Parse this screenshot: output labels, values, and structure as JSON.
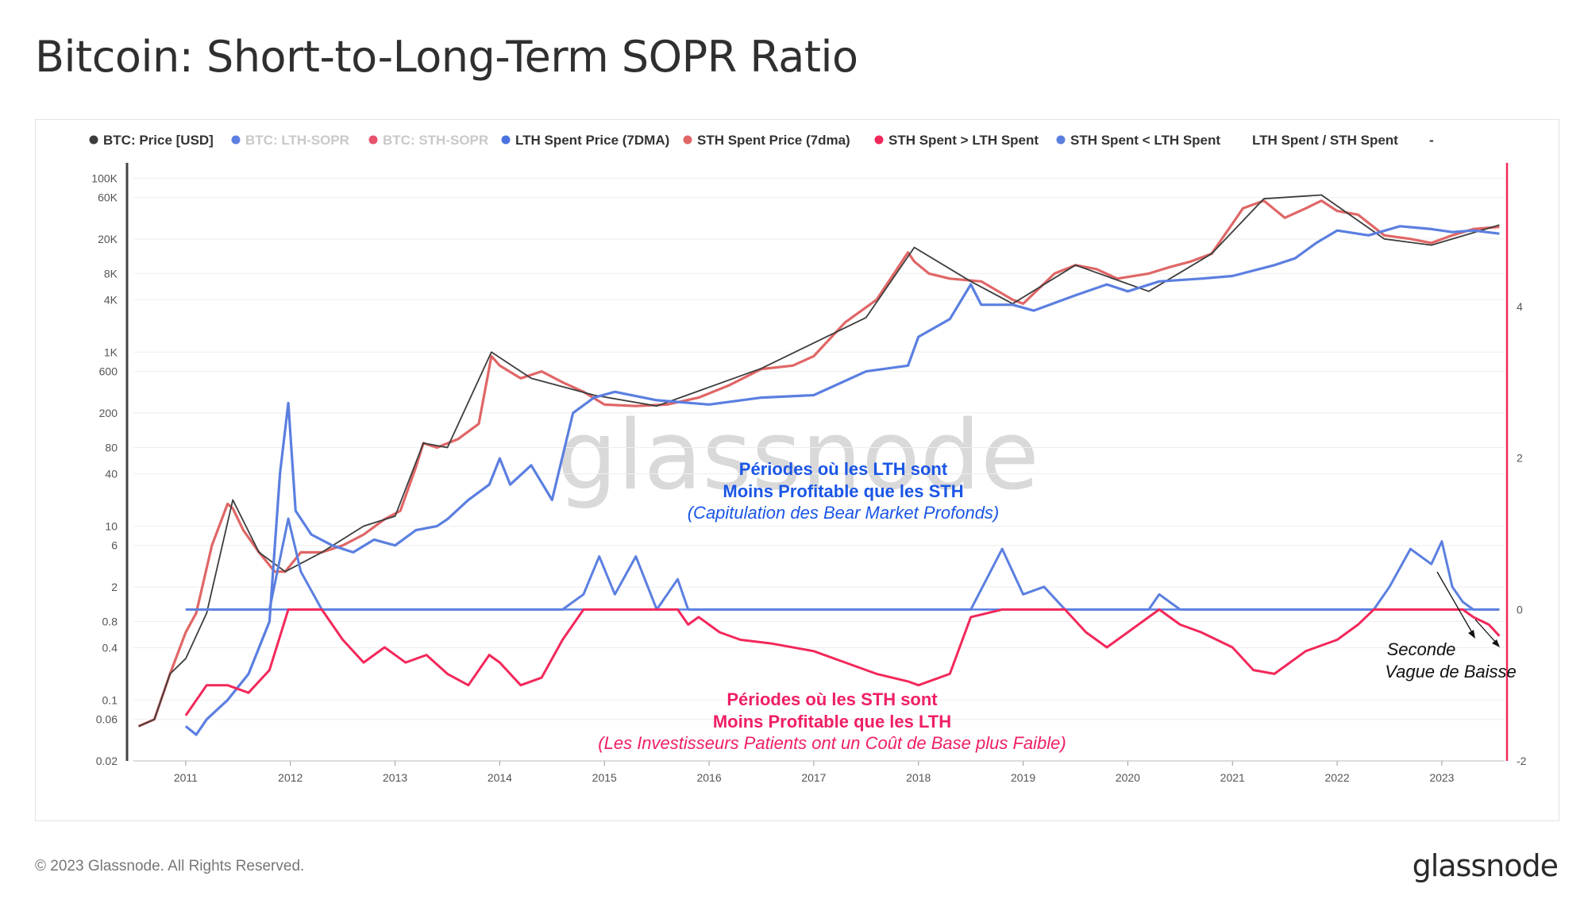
{
  "title": "Bitcoin: Short-to-Long-Term SOPR Ratio",
  "footer": {
    "copyright": "© 2023 Glassnode. All Rights Reserved.",
    "brand": "glassnode"
  },
  "watermark": "glassnode",
  "colors": {
    "price": "#3d3d3d",
    "lth_sopr": "#5b7fe0",
    "sth_sopr": "#e8516b",
    "lth_spent_price": "#5b7fe0",
    "sth_spent_price": "#e06666",
    "sth_gt_lth": "#f2285a",
    "sth_lt_lth": "#5b7fe0",
    "right_axis": "#f2285a"
  },
  "legend": [
    {
      "label": "BTC: Price [USD]",
      "color": "#3d3d3d",
      "muted": false
    },
    {
      "label": "BTC: LTH-SOPR",
      "color": "#5b7fe0",
      "muted": true
    },
    {
      "label": "BTC: STH-SOPR",
      "color": "#e8516b",
      "muted": true
    },
    {
      "label": "LTH Spent Price (7DMA)",
      "color": "#4b73e0",
      "muted": false
    },
    {
      "label": "STH Spent Price (7dma)",
      "color": "#e06666",
      "muted": false
    },
    {
      "label": "STH Spent > LTH Spent",
      "color": "#f2285a",
      "muted": false
    },
    {
      "label": "STH Spent < LTH Spent",
      "color": "#5b7fe0",
      "muted": false
    },
    {
      "label": "LTH Spent / STH Spent",
      "color": "",
      "muted": false
    },
    {
      "label": "-",
      "color": "",
      "muted": false
    }
  ],
  "annotations": {
    "top": [
      "Périodes où les LTH sont",
      "Moins Profitable que les STH",
      "(Capitulation des Bear Market Profonds)"
    ],
    "bottom": [
      "Périodes où les STH sont",
      "Moins Profitable que les LTH",
      "(Les Investisseurs Patients ont un Coût de Base plus Faible)"
    ],
    "note": [
      "Seconde",
      "Vague de Baisse"
    ]
  },
  "chart_data": {
    "type": "line",
    "x_axis": {
      "ticks": [
        "2011",
        "2012",
        "2013",
        "2014",
        "2015",
        "2016",
        "2017",
        "2018",
        "2019",
        "2020",
        "2021",
        "2022",
        "2023"
      ],
      "range": [
        2010.5,
        2023.6
      ]
    },
    "y_left": {
      "scale": "log",
      "ticks": [
        "100K",
        "60K",
        "20K",
        "8K",
        "4K",
        "1K",
        "600",
        "200",
        "80",
        "40",
        "10",
        "6",
        "2",
        "0.8",
        "0.4",
        "0.1",
        "0.06",
        "0.02"
      ],
      "tick_values": [
        100000,
        60000,
        20000,
        8000,
        4000,
        1000,
        600,
        200,
        80,
        40,
        10,
        6,
        2,
        0.8,
        0.4,
        0.1,
        0.06,
        0.02
      ],
      "range": [
        0.02,
        150000
      ]
    },
    "y_right": {
      "scale": "linear",
      "ticks": [
        "4",
        "2",
        "0",
        "-2"
      ],
      "tick_values": [
        4,
        2,
        0,
        -2
      ],
      "range": [
        -2,
        5.9
      ]
    },
    "series": [
      {
        "name": "STH Spent Price (7dma)",
        "axis": "left",
        "x": [
          2010.55,
          2010.7,
          2010.85,
          2011.0,
          2011.1,
          2011.25,
          2011.4,
          2011.45,
          2011.55,
          2011.7,
          2011.85,
          2011.95,
          2012.1,
          2012.3,
          2012.5,
          2012.7,
          2012.9,
          2013.05,
          2013.2,
          2013.27,
          2013.4,
          2013.6,
          2013.8,
          2013.92,
          2014.0,
          2014.2,
          2014.4,
          2014.6,
          2014.8,
          2015.0,
          2015.3,
          2015.6,
          2015.9,
          2016.2,
          2016.5,
          2016.8,
          2017.0,
          2017.3,
          2017.6,
          2017.9,
          2017.96,
          2018.1,
          2018.3,
          2018.6,
          2018.9,
          2019.0,
          2019.3,
          2019.5,
          2019.7,
          2019.9,
          2020.2,
          2020.4,
          2020.6,
          2020.8,
          2021.0,
          2021.1,
          2021.3,
          2021.5,
          2021.7,
          2021.85,
          2022.0,
          2022.2,
          2022.45,
          2022.7,
          2022.9,
          2023.1,
          2023.3,
          2023.55
        ],
        "y": [
          0.05,
          0.06,
          0.2,
          0.6,
          1,
          6,
          18,
          16,
          9,
          5,
          3,
          3,
          5,
          5,
          6,
          8,
          12,
          15,
          48,
          90,
          80,
          100,
          150,
          900,
          700,
          500,
          600,
          450,
          350,
          250,
          240,
          250,
          300,
          420,
          640,
          700,
          900,
          2200,
          4000,
          14000,
          11000,
          8000,
          7000,
          6500,
          4000,
          3600,
          8000,
          10000,
          9000,
          7000,
          8000,
          9500,
          11000,
          13500,
          30000,
          45000,
          55000,
          35000,
          45000,
          55000,
          42000,
          38000,
          22000,
          20000,
          18000,
          22000,
          26000,
          27500
        ]
      },
      {
        "name": "BTC: Price [USD]",
        "axis": "left",
        "x": [
          2010.55,
          2010.7,
          2010.85,
          2011.0,
          2011.2,
          2011.45,
          2011.7,
          2011.95,
          2012.3,
          2012.7,
          2013.0,
          2013.27,
          2013.5,
          2013.92,
          2014.3,
          2014.9,
          2015.5,
          2016.5,
          2017.5,
          2017.96,
          2018.5,
          2018.9,
          2019.5,
          2020.2,
          2020.8,
          2021.3,
          2021.85,
          2022.45,
          2022.9,
          2023.55
        ],
        "y": [
          0.05,
          0.06,
          0.2,
          0.3,
          1,
          20,
          5,
          3,
          5,
          10,
          13,
          90,
          80,
          1000,
          500,
          320,
          240,
          650,
          2500,
          16000,
          6500,
          3600,
          10000,
          5000,
          13500,
          58000,
          64000,
          20000,
          17000,
          29000
        ]
      },
      {
        "name": "LTH Spent Price (7DMA)",
        "axis": "left",
        "x": [
          2011.0,
          2011.1,
          2011.2,
          2011.4,
          2011.6,
          2011.8,
          2011.9,
          2011.98,
          2012.05,
          2012.2,
          2012.4,
          2012.6,
          2012.8,
          2013.0,
          2013.2,
          2013.4,
          2013.5,
          2013.7,
          2013.9,
          2014.0,
          2014.1,
          2014.3,
          2014.5,
          2014.7,
          2014.9,
          2015.1,
          2015.5,
          2016.0,
          2016.5,
          2017.0,
          2017.5,
          2017.9,
          2018.0,
          2018.3,
          2018.5,
          2018.6,
          2018.9,
          2019.1,
          2019.5,
          2019.8,
          2020.0,
          2020.3,
          2020.7,
          2021.0,
          2021.4,
          2021.6,
          2021.8,
          2022.0,
          2022.3,
          2022.6,
          2022.9,
          2023.1,
          2023.3,
          2023.55
        ],
        "y": [
          0.05,
          0.04,
          0.06,
          0.1,
          0.2,
          0.8,
          40,
          260,
          15,
          8,
          6,
          5,
          7,
          6,
          9,
          10,
          12,
          20,
          30,
          60,
          30,
          50,
          20,
          200,
          300,
          350,
          280,
          250,
          300,
          320,
          600,
          700,
          1500,
          2400,
          6000,
          3500,
          3500,
          3000,
          4500,
          6000,
          5000,
          6500,
          7000,
          7500,
          10000,
          12000,
          18000,
          25000,
          22000,
          28000,
          26000,
          24000,
          25000,
          23000
        ]
      },
      {
        "name": "LTH Spent / STH Spent",
        "axis": "right",
        "x": [
          2011.0,
          2011.2,
          2011.4,
          2011.6,
          2011.8,
          2011.98,
          2012.1,
          2012.3,
          2012.5,
          2012.7,
          2012.9,
          2013.1,
          2013.3,
          2013.5,
          2013.7,
          2013.9,
          2014.0,
          2014.2,
          2014.4,
          2014.6,
          2014.8,
          2014.95,
          2015.1,
          2015.3,
          2015.5,
          2015.7,
          2015.8,
          2015.9,
          2016.1,
          2016.3,
          2016.6,
          2017.0,
          2017.3,
          2017.6,
          2017.9,
          2018.0,
          2018.3,
          2018.5,
          2018.8,
          2019.0,
          2019.2,
          2019.4,
          2019.6,
          2019.8,
          2020.0,
          2020.2,
          2020.3,
          2020.5,
          2020.7,
          2021.0,
          2021.2,
          2021.4,
          2021.7,
          2022.0,
          2022.2,
          2022.35,
          2022.5,
          2022.7,
          2022.9,
          2023.0,
          2023.1,
          2023.2,
          2023.3,
          2023.45,
          2023.55
        ],
        "y": [
          -1.4,
          -1.0,
          -1.0,
          -1.1,
          -0.8,
          1.2,
          0.5,
          0.0,
          -0.4,
          -0.7,
          -0.5,
          -0.7,
          -0.6,
          -0.85,
          -1.0,
          -0.6,
          -0.7,
          -1.0,
          -0.9,
          -0.4,
          0.2,
          0.7,
          0.2,
          0.7,
          0.0,
          0.4,
          -0.2,
          -0.1,
          -0.3,
          -0.4,
          -0.45,
          -0.55,
          -0.7,
          -0.85,
          -0.95,
          -1.0,
          -0.85,
          -0.1,
          0.8,
          0.2,
          0.3,
          0.0,
          -0.3,
          -0.5,
          -0.3,
          -0.1,
          0.2,
          -0.2,
          -0.3,
          -0.5,
          -0.8,
          -0.85,
          -0.55,
          -0.4,
          -0.2,
          0.0,
          0.3,
          0.8,
          0.6,
          0.9,
          0.3,
          0.1,
          -0.1,
          -0.2,
          -0.35
        ]
      }
    ],
    "threshold": {
      "axis": "right",
      "value": 0,
      "x_start": 2011.0,
      "x_end": 2023.55
    }
  }
}
